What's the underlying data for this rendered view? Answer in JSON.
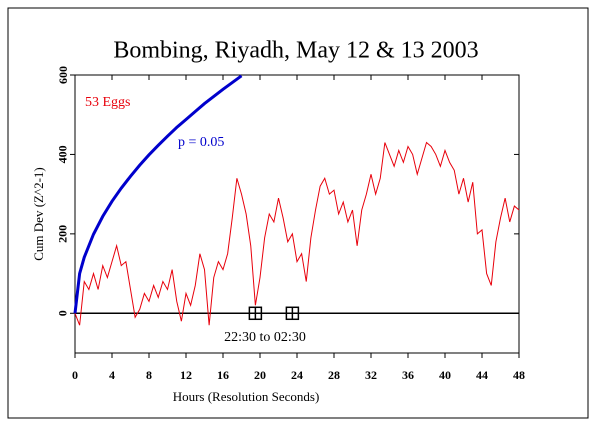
{
  "chart_data": {
    "type": "line",
    "title": "Bombing, Riyadh, May 12 & 13 2003",
    "x_label": "Hours (Resolution Seconds)",
    "y_label": "Cum Dev (Z^2-1)",
    "annotations": [
      {
        "text": "53 Eggs",
        "color": "#e8000b"
      },
      {
        "text": "p = 0.05",
        "color": "#0000cc"
      },
      {
        "text": "22:30 to 02:30",
        "color": "#000000"
      }
    ],
    "xlim": [
      0,
      48
    ],
    "ylim": [
      -100,
      600
    ],
    "xticks": [
      0,
      4,
      8,
      12,
      16,
      20,
      24,
      28,
      32,
      36,
      40,
      44,
      48
    ],
    "yticks": [
      0,
      200,
      400,
      600
    ],
    "reference_line": 0,
    "events": [
      19.5,
      23.5
    ],
    "series": [
      {
        "name": "53 Eggs",
        "color": "#e8000b",
        "x": [
          0,
          0.5,
          1,
          1.5,
          2,
          2.5,
          3,
          3.5,
          4,
          4.5,
          5,
          5.5,
          6,
          6.5,
          7,
          7.5,
          8,
          8.5,
          9,
          9.5,
          10,
          10.5,
          11,
          11.5,
          12,
          12.5,
          13,
          13.5,
          14,
          14.5,
          15,
          15.5,
          16,
          16.5,
          17,
          17.5,
          18,
          18.5,
          19,
          19.5,
          20,
          20.5,
          21,
          21.5,
          22,
          22.5,
          23,
          23.5,
          24,
          24.5,
          25,
          25.5,
          26,
          26.5,
          27,
          27.5,
          28,
          28.5,
          29,
          29.5,
          30,
          30.5,
          31,
          31.5,
          32,
          32.5,
          33,
          33.5,
          34,
          34.5,
          35,
          35.5,
          36,
          36.5,
          37,
          37.5,
          38,
          38.5,
          39,
          39.5,
          40,
          40.5,
          41,
          41.5,
          42,
          42.5,
          43,
          43.5,
          44,
          44.5,
          45,
          45.5,
          46,
          46.5,
          47,
          47.5,
          48
        ],
        "values": [
          0,
          -30,
          80,
          60,
          100,
          60,
          120,
          90,
          130,
          170,
          120,
          130,
          60,
          -10,
          10,
          50,
          30,
          70,
          40,
          80,
          60,
          110,
          30,
          -20,
          50,
          20,
          70,
          150,
          110,
          -30,
          90,
          130,
          110,
          150,
          240,
          340,
          300,
          250,
          170,
          20,
          90,
          190,
          250,
          230,
          290,
          240,
          180,
          200,
          130,
          150,
          80,
          190,
          260,
          320,
          340,
          300,
          310,
          250,
          280,
          230,
          260,
          170,
          260,
          300,
          350,
          300,
          340,
          430,
          400,
          370,
          410,
          380,
          420,
          400,
          350,
          390,
          430,
          420,
          400,
          370,
          410,
          380,
          360,
          300,
          340,
          280,
          330,
          200,
          210,
          100,
          70,
          180,
          240,
          290,
          230,
          270,
          260
        ]
      },
      {
        "name": "p = 0.05",
        "color": "#0000cc",
        "x": [
          0,
          0.5,
          1,
          2,
          3,
          4,
          5,
          6,
          7,
          8,
          9,
          10,
          11,
          12,
          13,
          14,
          15,
          16,
          17,
          18
        ],
        "values": [
          0,
          100,
          141,
          199,
          244,
          282,
          315,
          345,
          373,
          399,
          423,
          446,
          468,
          488,
          508,
          528,
          546,
          564,
          581,
          598
        ]
      }
    ]
  }
}
